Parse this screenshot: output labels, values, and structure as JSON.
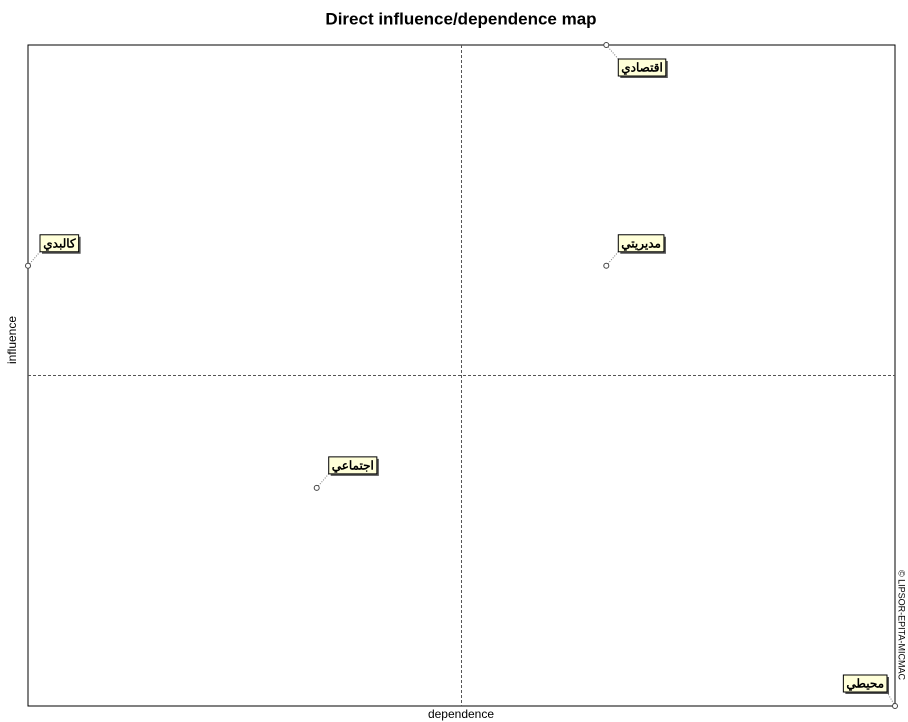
{
  "chart_data": {
    "type": "scatter",
    "title": "Direct influence/dependence map",
    "x_label": "dependence",
    "y_label": "influence",
    "copyright": "© LIPSOR-EPITA-MICMAC",
    "labels": [
      "اقتصادي",
      "كالبدي",
      "مديريتي",
      "اجتماعي",
      "محيطي"
    ],
    "x": [
      66.7,
      0,
      66.7,
      33.3,
      100
    ],
    "y": [
      100,
      66.6,
      66.6,
      33.0,
      0
    ],
    "xlim": [
      0,
      100
    ],
    "ylim": [
      0,
      100
    ],
    "quadrant_lines": true,
    "label_color": "#ffffd9"
  }
}
